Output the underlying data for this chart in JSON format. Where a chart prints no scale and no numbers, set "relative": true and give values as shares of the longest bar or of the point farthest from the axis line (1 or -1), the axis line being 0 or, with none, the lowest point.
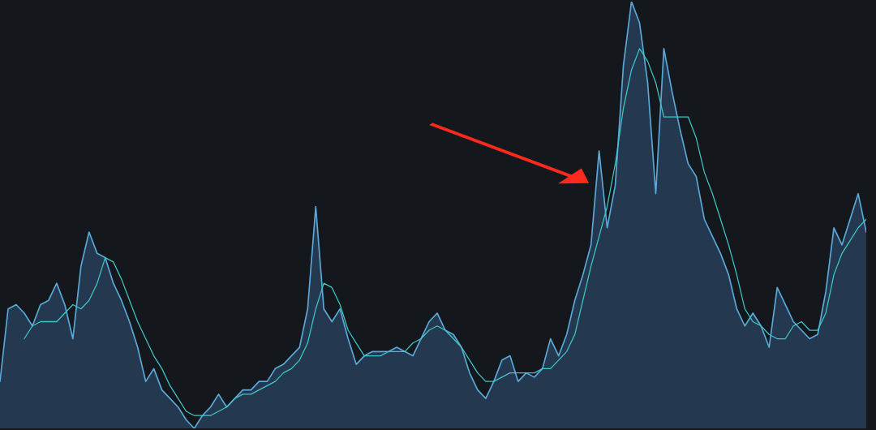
{
  "chart_data": {
    "type": "area",
    "relative": true,
    "legend": false,
    "categories": [
      null,
      null,
      null,
      null,
      null,
      null,
      null,
      null,
      null,
      null,
      null,
      null,
      null,
      null,
      null,
      null,
      null,
      null,
      null,
      null,
      null,
      null,
      null,
      null,
      null,
      null,
      null,
      null,
      null,
      null,
      null,
      null,
      null,
      null,
      null,
      null,
      null,
      null,
      null,
      null,
      null,
      null,
      null,
      null,
      null,
      null,
      null,
      null,
      null,
      null,
      null,
      null,
      null,
      null,
      null,
      null,
      null,
      null,
      null,
      null,
      null,
      null,
      null,
      null,
      null,
      null,
      null,
      null,
      null,
      null,
      null,
      null,
      null,
      null,
      null,
      null,
      null,
      null,
      null,
      null,
      null,
      null,
      null,
      null,
      null,
      null,
      null,
      null,
      null,
      null,
      null,
      null,
      null,
      null,
      null,
      null,
      null,
      null,
      null,
      null,
      null,
      null,
      null,
      null,
      null,
      null,
      null,
      null
    ],
    "series": [
      {
        "color": "#5aa9d8",
        "values": [
          0.11,
          0.28,
          0.29,
          0.27,
          0.24,
          0.29,
          0.3,
          0.34,
          0.29,
          0.21,
          0.38,
          0.46,
          0.41,
          0.4,
          0.34,
          0.3,
          0.25,
          0.19,
          0.11,
          0.14,
          0.09,
          0.07,
          0.05,
          0.02,
          0,
          0.03,
          0.05,
          0.08,
          0.05,
          0.07,
          0.09,
          0.09,
          0.11,
          0.11,
          0.14,
          0.15,
          0.17,
          0.19,
          0.28,
          0.52,
          0.28,
          0.25,
          0.28,
          0.21,
          0.15,
          0.17,
          0.18,
          0.18,
          0.18,
          0.19,
          0.18,
          0.17,
          0.21,
          0.25,
          0.27,
          0.23,
          0.22,
          0.19,
          0.13,
          0.09,
          0.07,
          0.11,
          0.16,
          0.17,
          0.11,
          0.13,
          0.12,
          0.14,
          0.21,
          0.17,
          0.22,
          0.3,
          0.36,
          0.43,
          0.65,
          0.47,
          0.57,
          0.85,
          1,
          0.95,
          0.81,
          0.55,
          0.89,
          0.79,
          0.7,
          0.62,
          0.59,
          0.49,
          0.45,
          0.41,
          0.36,
          0.28,
          0.24,
          0.27,
          0.24,
          0.19,
          0.33,
          0.29,
          0.25,
          0.23,
          0.21,
          0.22,
          0.32,
          0.47,
          0.43,
          0.49,
          0.55,
          0.46
        ]
      },
      {
        "type": "line",
        "color": "#3fc7c7",
        "values": [
          null,
          null,
          null,
          0.21,
          0.24,
          0.25,
          0.25,
          0.25,
          0.27,
          0.29,
          0.28,
          0.3,
          0.34,
          0.4,
          0.39,
          0.35,
          0.3,
          0.25,
          0.21,
          0.17,
          0.14,
          0.1,
          0.07,
          0.04,
          0.03,
          0.03,
          0.03,
          0.04,
          0.05,
          0.07,
          0.08,
          0.08,
          0.09,
          0.1,
          0.11,
          0.13,
          0.14,
          0.16,
          0.2,
          0.28,
          0.34,
          0.33,
          0.29,
          0.23,
          0.2,
          0.17,
          0.17,
          0.17,
          0.18,
          0.18,
          0.18,
          0.2,
          0.21,
          0.23,
          0.24,
          0.23,
          0.21,
          0.19,
          0.16,
          0.13,
          0.11,
          0.11,
          0.12,
          0.13,
          0.13,
          0.13,
          0.13,
          0.14,
          0.14,
          0.16,
          0.18,
          0.22,
          0.3,
          0.38,
          0.45,
          0.52,
          0.62,
          0.75,
          0.84,
          0.89,
          0.86,
          0.81,
          0.73,
          0.73,
          0.73,
          0.73,
          0.68,
          0.6,
          0.55,
          0.49,
          0.43,
          0.36,
          0.28,
          0.25,
          0.24,
          0.22,
          0.21,
          0.21,
          0.24,
          0.25,
          0.23,
          0.23,
          0.27,
          0.36,
          0.41,
          0.44,
          0.47,
          0.49
        ]
      }
    ]
  }
}
